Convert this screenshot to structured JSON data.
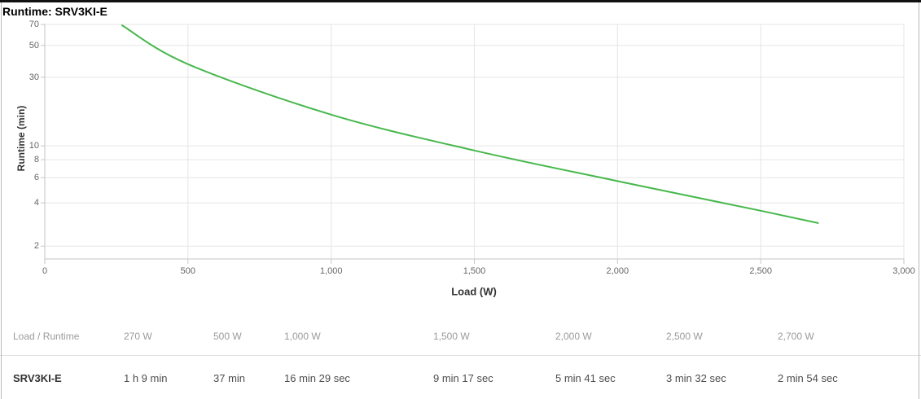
{
  "header": {
    "title": "Runtime: SRV3KI-E"
  },
  "chart_data": {
    "type": "line",
    "title": "Runtime: SRV3KI-E",
    "xlabel": "Load (W)",
    "ylabel": "Runtime (min)",
    "y_scale": "log",
    "grid": true,
    "legend_position": "none",
    "xlim": [
      0,
      3000
    ],
    "ylim": [
      1.63,
      70
    ],
    "x_tick_values": [
      0,
      500,
      1000,
      1500,
      2000,
      2500,
      3000
    ],
    "x_tick_labels": [
      "0",
      "500",
      "1,000",
      "1,500",
      "2,000",
      "2,500",
      "3,000"
    ],
    "y_tick_values": [
      70,
      50,
      30,
      10,
      8,
      6,
      4,
      2
    ],
    "y_tick_labels": [
      "70",
      "50",
      "30",
      "10",
      "8",
      "6",
      "4",
      "2"
    ],
    "series": [
      {
        "name": "SRV3KI-E",
        "x": [
          270,
          500,
          1000,
          1500,
          2000,
          2500,
          2700
        ],
        "y": [
          69,
          37,
          16.48,
          9.28,
          5.68,
          3.53,
          2.9
        ]
      }
    ],
    "line_color": "#47b84c",
    "grid_color": "#e5e5e5",
    "axis_color": "#c6c6c6"
  },
  "table": {
    "header": [
      "Load / Runtime",
      "270 W",
      "500 W",
      "1,000 W",
      "1,500 W",
      "2,000 W",
      "2,500 W",
      "2,700 W"
    ],
    "rows": [
      {
        "label": "SRV3KI-E",
        "values": [
          "1 h 9 min",
          "37 min",
          "16 min 29 sec",
          "9 min 17 sec",
          "5 min 41 sec",
          "3 min 32 sec",
          "2 min 54 sec"
        ]
      }
    ]
  }
}
